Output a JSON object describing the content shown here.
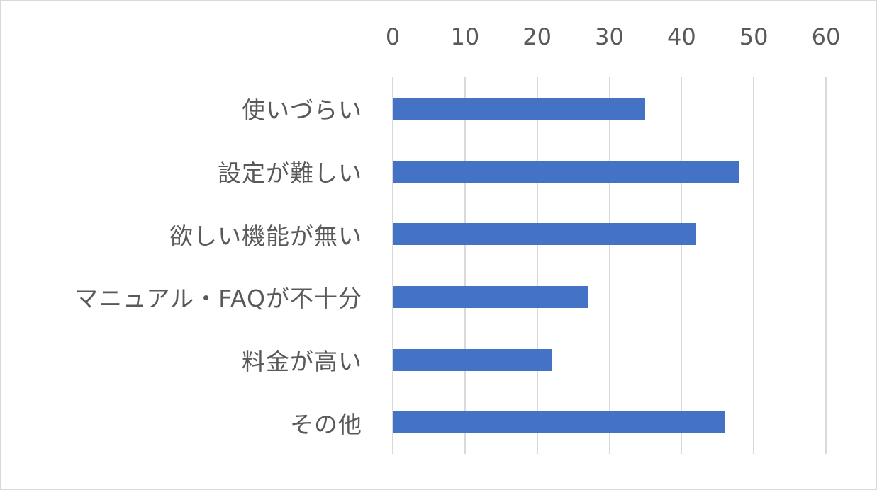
{
  "chart_data": {
    "type": "bar",
    "orientation": "horizontal",
    "title": "",
    "xlabel": "",
    "ylabel": "",
    "categories": [
      "使いづらい",
      "設定が難しい",
      "欲しい機能が無い",
      "マニュアル・FAQが不十分",
      "料金が高い",
      "その他"
    ],
    "values": [
      35,
      48,
      42,
      27,
      22,
      46
    ],
    "xlim": [
      0,
      60
    ],
    "xticks": [
      "0",
      "10",
      "20",
      "30",
      "40",
      "50",
      "60"
    ],
    "axis_position": "top",
    "grid": true,
    "legend": null,
    "bar_color": "#4472c4"
  }
}
